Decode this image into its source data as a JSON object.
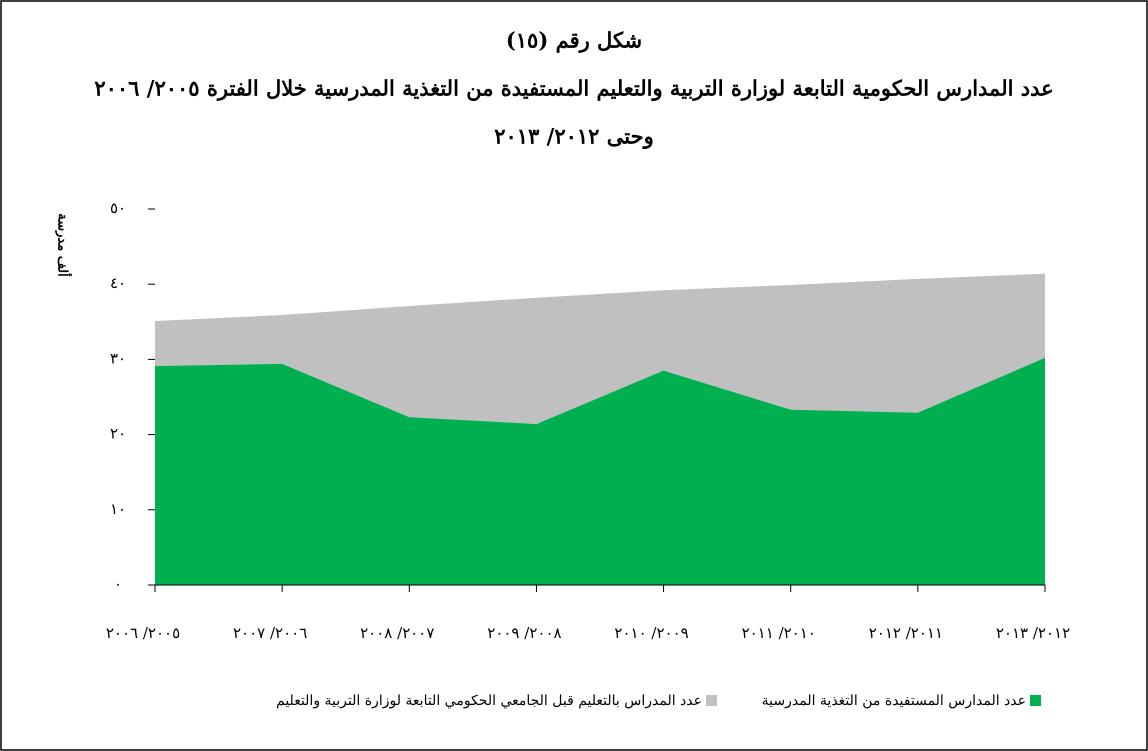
{
  "chart_data": {
    "type": "area",
    "title": "شكل رقم (١٥)",
    "subtitle": [
      "عدد المدارس الحكومية التابعة لوزارة التربية والتعليم المستفيدة من التغذية المدرسية خلال الفترة ٢٠٠٥/ ٢٠٠٦",
      "وحتى ٢٠١٢/ ٢٠١٣"
    ],
    "y_label": "ألف مدرسة",
    "categories": [
      "٢٠٠٥/ ٢٠٠٦",
      "٢٠٠٦/ ٢٠٠٧",
      "٢٠٠٧/ ٢٠٠٨",
      "٢٠٠٨/ ٢٠٠٩",
      "٢٠٠٩/ ٢٠١٠",
      "٢٠١٠/ ٢٠١١",
      "٢٠١١/ ٢٠١٢",
      "٢٠١٢/ ٢٠١٣"
    ],
    "series": [
      {
        "name": "عدد المدراس بالتعليم قبل الجامعي الحكومي التابعة لوزارة التربية والتعليم",
        "color": "#c0c0c0",
        "values": [
          35.1,
          35.9,
          37.1,
          38.2,
          39.2,
          39.9,
          40.7,
          41.4
        ]
      },
      {
        "name": "عدد المدارس المستفيدة من التغذية المدرسية",
        "color": "#00b050",
        "values": [
          29.1,
          29.4,
          22.3,
          21.4,
          28.5,
          23.3,
          22.9,
          30.2
        ]
      }
    ],
    "ylim": [
      0,
      50
    ],
    "yticks": [
      {
        "value": 0,
        "label": "٠"
      },
      {
        "value": 10,
        "label": "١٠"
      },
      {
        "value": 20,
        "label": "٢٠"
      },
      {
        "value": 30,
        "label": "٣٠"
      },
      {
        "value": 40,
        "label": "٤٠"
      },
      {
        "value": 50,
        "label": "٥٠"
      }
    ]
  }
}
